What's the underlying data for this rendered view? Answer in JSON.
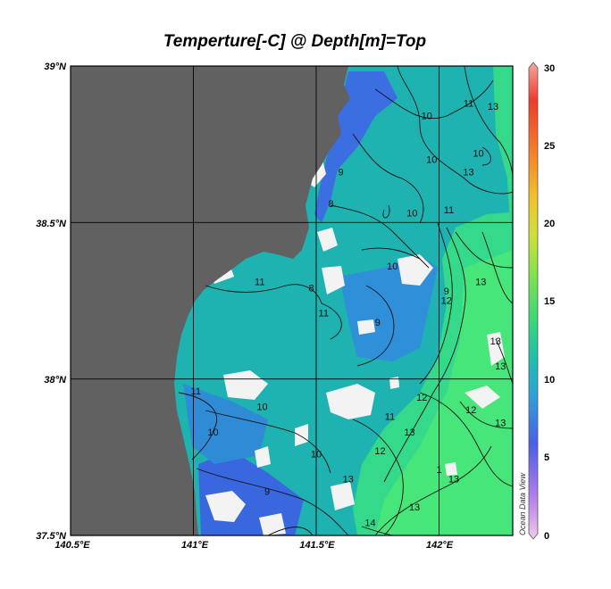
{
  "title": "Temperture[-C] @ Depth[m]=Top",
  "credit": "Ocean Data View",
  "colors": {
    "land": "#616161",
    "nodata": "#f3f3f3",
    "cold": "#3a64e0",
    "mid": "#1ba9b8",
    "warm": "#37e07c",
    "colorbar": [
      "#f3c8ec",
      "#b07ee8",
      "#4b5ee8",
      "#2fa0d8",
      "#1fbfae",
      "#3ad77a",
      "#7fe050",
      "#cfe03a",
      "#f2c02a",
      "#f47a2a",
      "#ee3a2a",
      "#f4a8a0"
    ]
  },
  "chart_data": {
    "type": "heatmap",
    "title": "Temperture[-C] @ Depth[m]=Top",
    "xlabel": "",
    "ylabel": "",
    "x_ticks": [
      "140.5°E",
      "141°E",
      "141.5°E",
      "142°E"
    ],
    "y_ticks": [
      "39°N",
      "38.5°N",
      "38°N",
      "37.5°N"
    ],
    "xlim": [
      140.5,
      142.3
    ],
    "ylim": [
      37.5,
      39.0
    ],
    "grid": true,
    "colorbar": {
      "range": [
        0,
        30
      ],
      "ticks": [
        "0",
        "5",
        "10",
        "15",
        "20",
        "25",
        "30"
      ]
    },
    "contour_labels": [
      {
        "text": "10",
        "lon": 141.95,
        "lat": 38.83
      },
      {
        "text": "11",
        "lon": 142.12,
        "lat": 38.87
      },
      {
        "text": "13",
        "lon": 142.22,
        "lat": 38.86
      },
      {
        "text": "10",
        "lon": 142.16,
        "lat": 38.71
      },
      {
        "text": "10",
        "lon": 141.97,
        "lat": 38.69
      },
      {
        "text": "13",
        "lon": 142.12,
        "lat": 38.65
      },
      {
        "text": "9",
        "lon": 141.6,
        "lat": 38.65
      },
      {
        "text": "8",
        "lon": 141.56,
        "lat": 38.55
      },
      {
        "text": "10",
        "lon": 141.89,
        "lat": 38.52
      },
      {
        "text": "11",
        "lon": 142.04,
        "lat": 38.53
      },
      {
        "text": "10",
        "lon": 141.81,
        "lat": 38.35
      },
      {
        "text": "11",
        "lon": 141.27,
        "lat": 38.3
      },
      {
        "text": "8",
        "lon": 141.48,
        "lat": 38.28
      },
      {
        "text": "9",
        "lon": 142.03,
        "lat": 38.27
      },
      {
        "text": "13",
        "lon": 142.17,
        "lat": 38.3
      },
      {
        "text": "12",
        "lon": 142.03,
        "lat": 38.24
      },
      {
        "text": "11",
        "lon": 141.53,
        "lat": 38.2
      },
      {
        "text": "9",
        "lon": 141.75,
        "lat": 38.17
      },
      {
        "text": "13",
        "lon": 142.23,
        "lat": 38.11
      },
      {
        "text": "13",
        "lon": 142.25,
        "lat": 38.03
      },
      {
        "text": "11",
        "lon": 141.01,
        "lat": 37.95
      },
      {
        "text": "10",
        "lon": 141.28,
        "lat": 37.9
      },
      {
        "text": "12",
        "lon": 141.93,
        "lat": 37.93
      },
      {
        "text": "11",
        "lon": 141.8,
        "lat": 37.87
      },
      {
        "text": "12",
        "lon": 142.13,
        "lat": 37.89
      },
      {
        "text": "13",
        "lon": 142.25,
        "lat": 37.85
      },
      {
        "text": "13",
        "lon": 141.88,
        "lat": 37.82
      },
      {
        "text": "10",
        "lon": 141.08,
        "lat": 37.82
      },
      {
        "text": "10",
        "lon": 141.5,
        "lat": 37.75
      },
      {
        "text": "12",
        "lon": 141.76,
        "lat": 37.76
      },
      {
        "text": "1",
        "lon": 142.0,
        "lat": 37.7
      },
      {
        "text": "13",
        "lon": 142.06,
        "lat": 37.67
      },
      {
        "text": "13",
        "lon": 141.63,
        "lat": 37.67
      },
      {
        "text": "9",
        "lon": 141.3,
        "lat": 37.63
      },
      {
        "text": "13",
        "lon": 141.9,
        "lat": 37.58
      },
      {
        "text": "14",
        "lon": 141.72,
        "lat": 37.53
      }
    ]
  }
}
